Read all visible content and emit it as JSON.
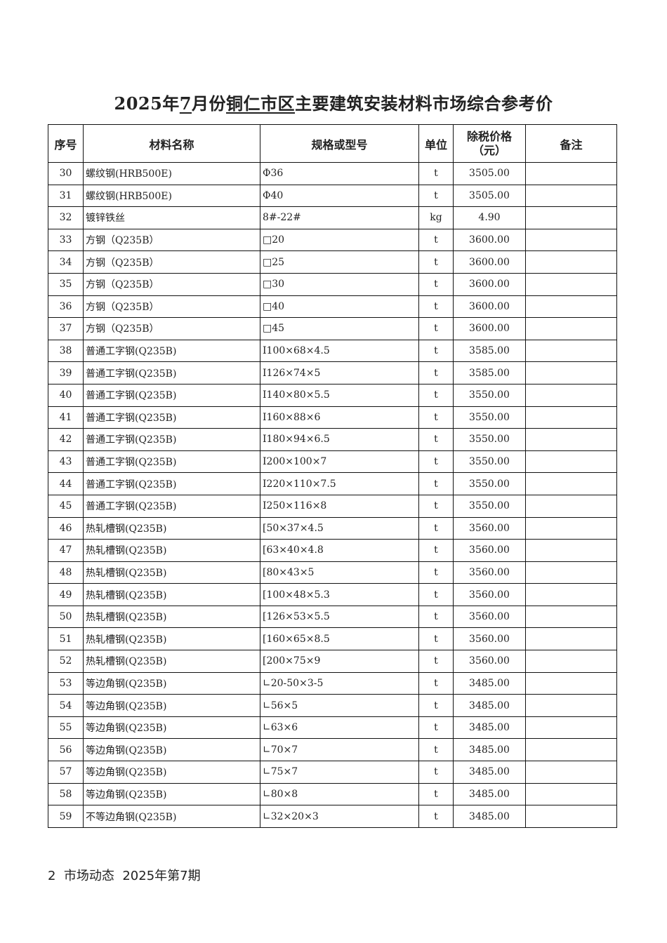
{
  "title": {
    "year": "2025年",
    "month": "7",
    "month_suffix": "月份",
    "region": "铜仁市区",
    "rest": "主要建筑安装材料市场综合参考价"
  },
  "table": {
    "headers": {
      "no": "序号",
      "name": "材料名称",
      "spec": "规格或型号",
      "unit": "单位",
      "price_line1": "除税价格",
      "price_line2": "（元）",
      "note": "备注"
    },
    "rows": [
      [
        "30",
        "螺纹钢(HRB500E)",
        "Φ36",
        "t",
        "3505.00",
        ""
      ],
      [
        "31",
        "螺纹钢(HRB500E)",
        "Φ40",
        "t",
        "3505.00",
        ""
      ],
      [
        "32",
        "镀锌铁丝",
        "8#-22#",
        "kg",
        "4.90",
        ""
      ],
      [
        "33",
        "方钢（Q235B）",
        "□20",
        "t",
        "3600.00",
        ""
      ],
      [
        "34",
        "方钢（Q235B）",
        "□25",
        "t",
        "3600.00",
        ""
      ],
      [
        "35",
        "方钢（Q235B）",
        "□30",
        "t",
        "3600.00",
        ""
      ],
      [
        "36",
        "方钢（Q235B）",
        "□40",
        "t",
        "3600.00",
        ""
      ],
      [
        "37",
        "方钢（Q235B）",
        "□45",
        "t",
        "3600.00",
        ""
      ],
      [
        "38",
        "普通工字钢(Q235B)",
        "I100×68×4.5",
        "t",
        "3585.00",
        ""
      ],
      [
        "39",
        "普通工字钢(Q235B)",
        "I126×74×5",
        "t",
        "3585.00",
        ""
      ],
      [
        "40",
        "普通工字钢(Q235B)",
        "I140×80×5.5",
        "t",
        "3550.00",
        ""
      ],
      [
        "41",
        "普通工字钢(Q235B)",
        "I160×88×6",
        "t",
        "3550.00",
        ""
      ],
      [
        "42",
        "普通工字钢(Q235B)",
        "I180×94×6.5",
        "t",
        "3550.00",
        ""
      ],
      [
        "43",
        "普通工字钢(Q235B)",
        "I200×100×7",
        "t",
        "3550.00",
        ""
      ],
      [
        "44",
        "普通工字钢(Q235B)",
        "I220×110×7.5",
        "t",
        "3550.00",
        ""
      ],
      [
        "45",
        "普通工字钢(Q235B)",
        "I250×116×8",
        "t",
        "3550.00",
        ""
      ],
      [
        "46",
        "热轧槽钢(Q235B)",
        "[50×37×4.5",
        "t",
        "3560.00",
        ""
      ],
      [
        "47",
        "热轧槽钢(Q235B)",
        "[63×40×4.8",
        "t",
        "3560.00",
        ""
      ],
      [
        "48",
        "热轧槽钢(Q235B)",
        "[80×43×5",
        "t",
        "3560.00",
        ""
      ],
      [
        "49",
        "热轧槽钢(Q235B)",
        "[100×48×5.3",
        "t",
        "3560.00",
        ""
      ],
      [
        "50",
        "热轧槽钢(Q235B)",
        "[126×53×5.5",
        "t",
        "3560.00",
        ""
      ],
      [
        "51",
        "热轧槽钢(Q235B)",
        "[160×65×8.5",
        "t",
        "3560.00",
        ""
      ],
      [
        "52",
        "热轧槽钢(Q235B)",
        "[200×75×9",
        "t",
        "3560.00",
        ""
      ],
      [
        "53",
        "等边角钢(Q235B)",
        "∟20-50×3-5",
        "t",
        "3485.00",
        ""
      ],
      [
        "54",
        "等边角钢(Q235B)",
        "∟56×5",
        "t",
        "3485.00",
        ""
      ],
      [
        "55",
        "等边角钢(Q235B)",
        "∟63×6",
        "t",
        "3485.00",
        ""
      ],
      [
        "56",
        "等边角钢(Q235B)",
        "∟70×7",
        "t",
        "3485.00",
        ""
      ],
      [
        "57",
        "等边角钢(Q235B)",
        "∟75×7",
        "t",
        "3485.00",
        ""
      ],
      [
        "58",
        "等边角钢(Q235B)",
        "∟80×8",
        "t",
        "3485.00",
        ""
      ],
      [
        "59",
        "不等边角钢(Q235B)",
        "∟32×20×3",
        "t",
        "3485.00",
        ""
      ]
    ]
  },
  "footer": {
    "page": "2",
    "publication": "市场动态",
    "issue": "2025年第7期"
  }
}
